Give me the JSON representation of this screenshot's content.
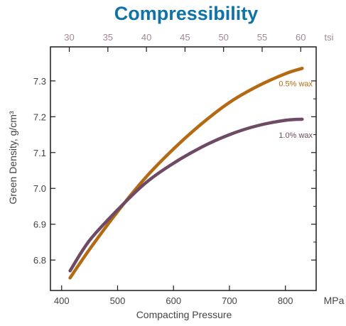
{
  "colors": {
    "title": "#0f73a6",
    "axis": "#1a1a1a",
    "text": "#444444",
    "top_ticks": "#a28898",
    "series_a": "#b46a12",
    "series_b": "#6e4a64"
  },
  "chart_data": {
    "type": "line",
    "title": "Compressibility",
    "xlabel": "Compacting Pressure",
    "x_unit": "MPa",
    "ylabel": "Green Density, g/cm³",
    "top_axis_unit": "tsi",
    "xlim": [
      380,
      855
    ],
    "ylim": [
      6.715,
      7.395
    ],
    "x_ticks": [
      400,
      500,
      600,
      700,
      800
    ],
    "y_ticks": [
      6.8,
      6.9,
      7.0,
      7.1,
      7.2,
      7.3
    ],
    "top_ticks": [
      30,
      35,
      40,
      45,
      50,
      55,
      60
    ],
    "top_axis_mpa_per_tsi": 13.79,
    "grid": false,
    "legend": "inline labels at right end of curves",
    "series": [
      {
        "name": "0.5% wax",
        "color_key": "series_a",
        "x": [
          415,
          450,
          500,
          550,
          600,
          650,
          700,
          750,
          800,
          830
        ],
        "y": [
          6.75,
          6.83,
          6.935,
          7.03,
          7.11,
          7.18,
          7.24,
          7.285,
          7.32,
          7.335
        ]
      },
      {
        "name": "1.0% wax",
        "color_key": "series_b",
        "x": [
          415,
          450,
          500,
          550,
          600,
          650,
          700,
          750,
          800,
          830
        ],
        "y": [
          6.77,
          6.855,
          6.94,
          7.015,
          7.07,
          7.115,
          7.15,
          7.175,
          7.19,
          7.193
        ]
      }
    ]
  }
}
